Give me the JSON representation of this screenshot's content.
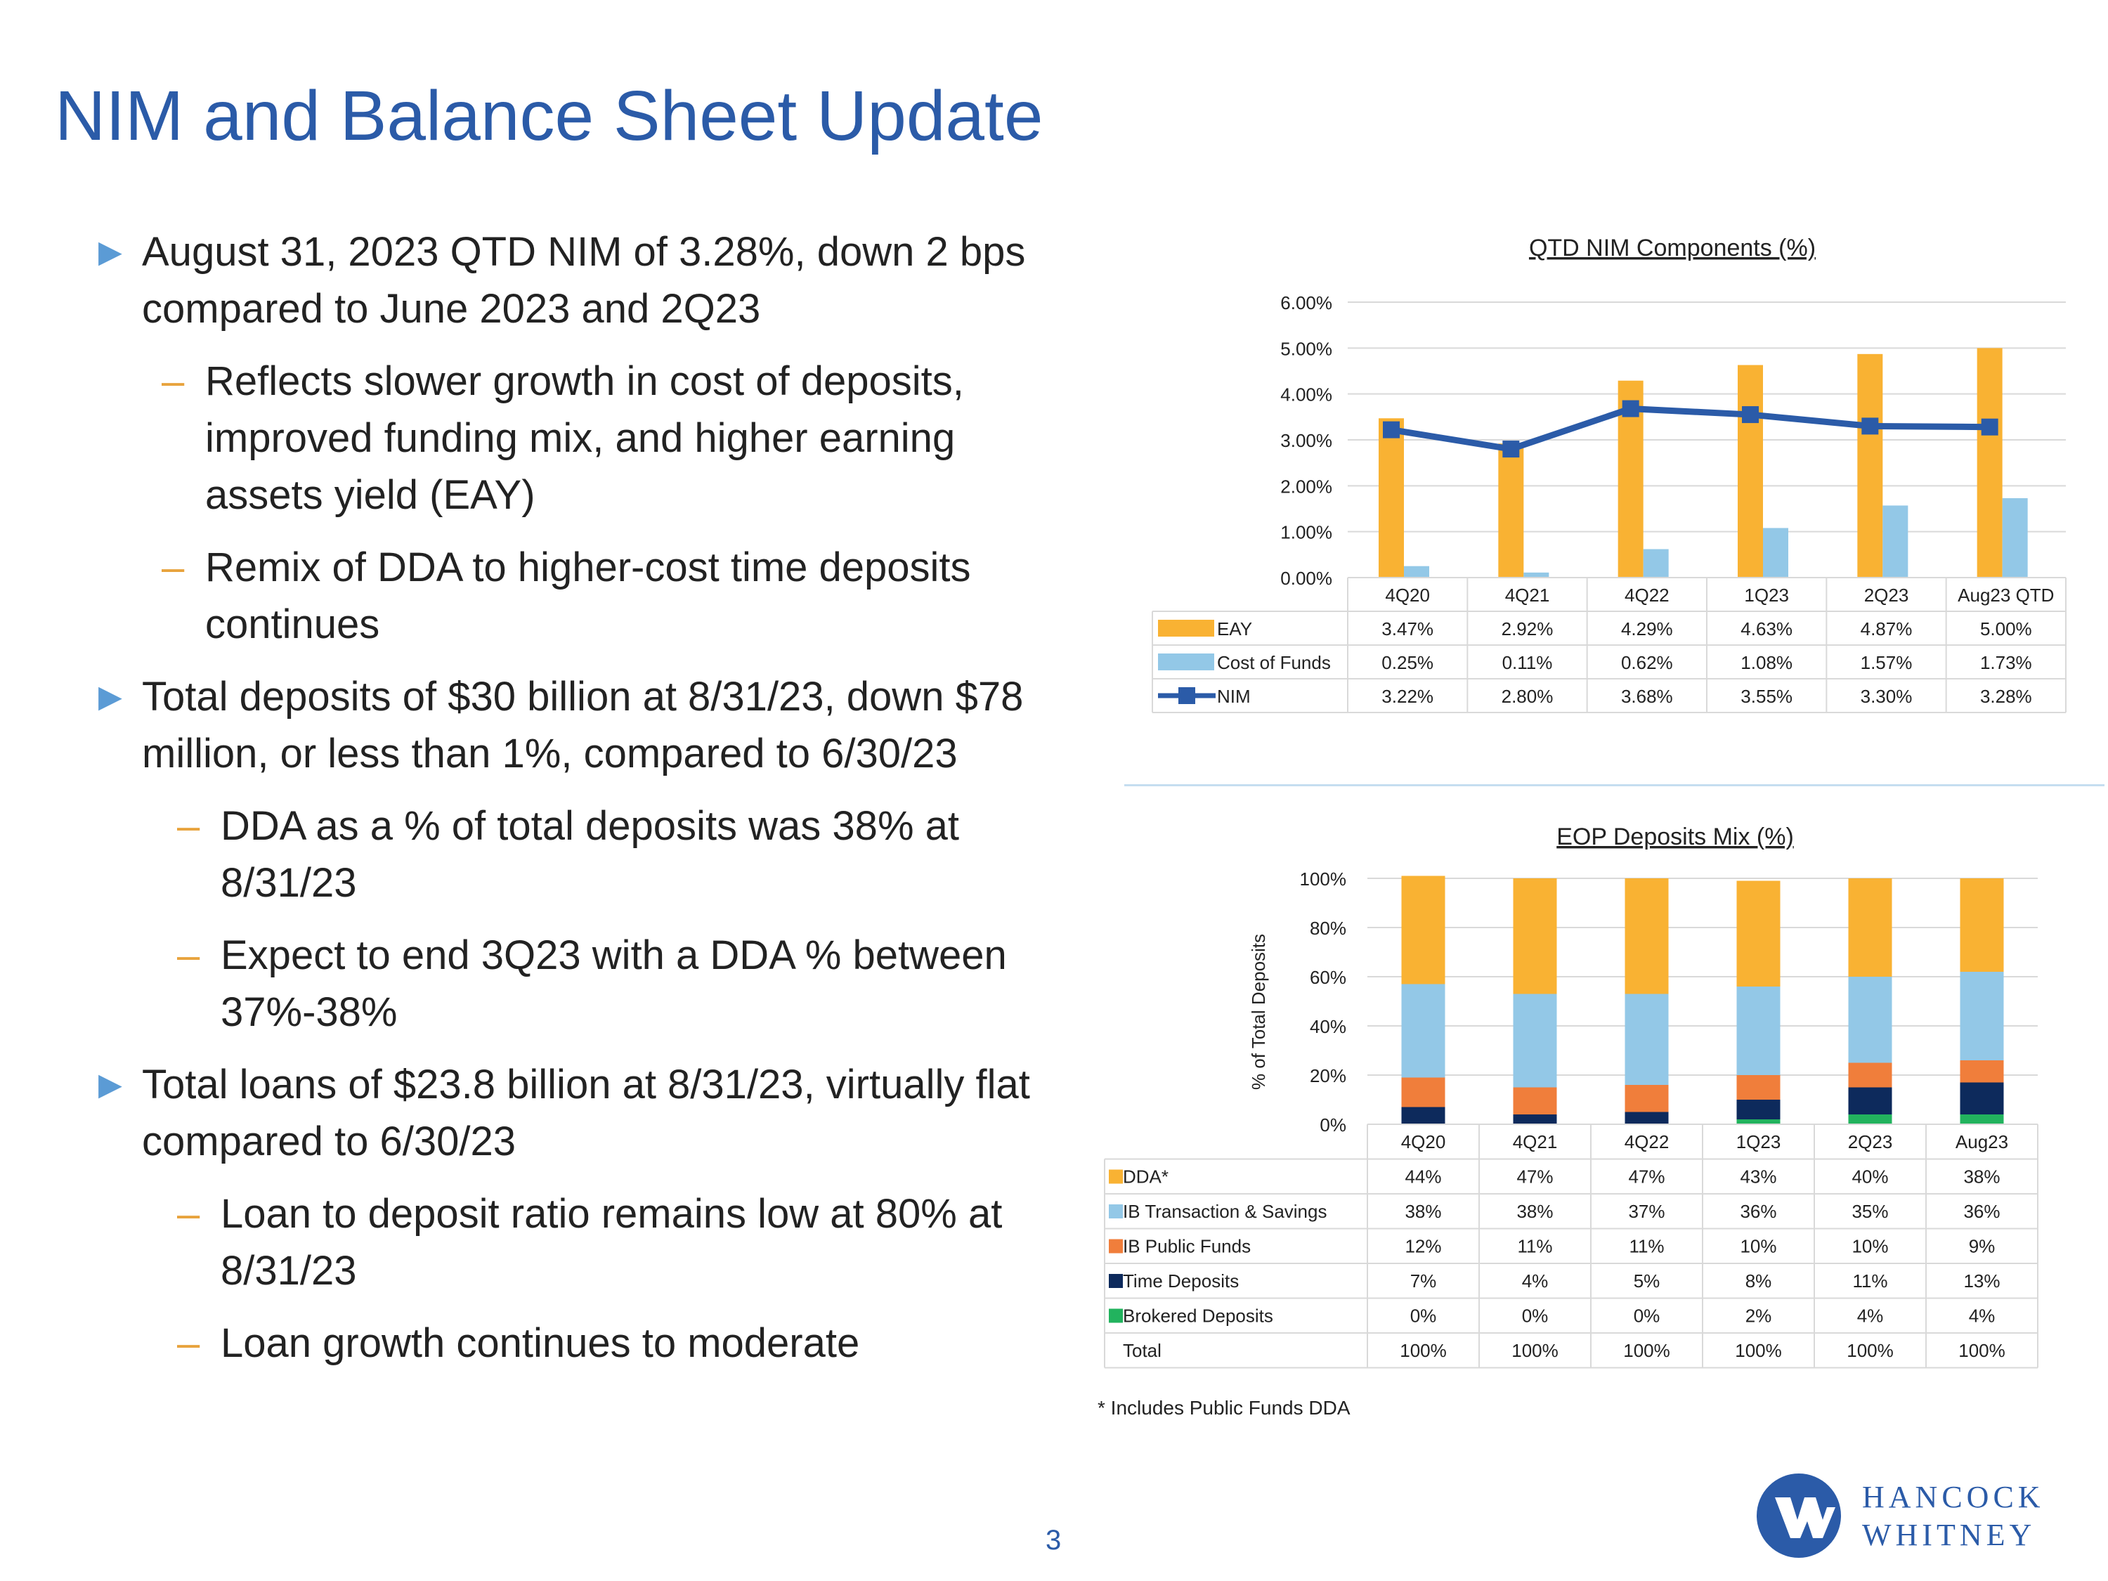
{
  "page": {
    "title": "NIM and Balance Sheet Update",
    "page_number": "3",
    "footnote": "* Includes Public Funds DDA",
    "logo": {
      "line1": "HANCOCK",
      "line2": "WHITNEY",
      "mark": "HW"
    }
  },
  "bullets": [
    {
      "level": 1,
      "text": "August 31, 2023 QTD NIM of 3.28%, down 2 bps compared to June 2023 and 2Q23"
    },
    {
      "level": 2,
      "text": "Reflects slower growth in cost of deposits, improved funding mix, and higher earning assets yield (EAY)"
    },
    {
      "level": 2,
      "text": "Remix of DDA to higher-cost time deposits continues"
    },
    {
      "level": 1,
      "text": "Total deposits of $30 billion at 8/31/23, down $78 million, or less than 1%, compared to 6/30/23"
    },
    {
      "level": 2,
      "text": "DDA as a % of total deposits was 38% at 8/31/23"
    },
    {
      "level": 2,
      "text": "Expect to end 3Q23 with a DDA % between 37%-38%"
    },
    {
      "level": 1,
      "text": "Total loans of $23.8 billion at 8/31/23, virtually flat compared to 6/30/23"
    },
    {
      "level": 2,
      "text": "Loan to deposit ratio remains low at 80% at 8/31/23"
    },
    {
      "level": 2,
      "text": "Loan growth continues to moderate"
    }
  ],
  "colors": {
    "title": "#2b5ba8",
    "eay": "#f9b233",
    "cost": "#93c8e7",
    "nim": "#2b5ba8",
    "dda": "#f9b233",
    "ib_ts": "#93c8e7",
    "ib_pf": "#f07e3b",
    "time": "#0d2a5c",
    "brokered": "#22b35e",
    "grid": "#d9d9d9"
  },
  "chart_data": [
    {
      "type": "bar",
      "title": "QTD NIM Components (%)",
      "categories": [
        "4Q20",
        "4Q21",
        "4Q22",
        "1Q23",
        "2Q23",
        "Aug23 QTD"
      ],
      "ylim": [
        0,
        6
      ],
      "yticks": [
        "0.00%",
        "1.00%",
        "2.00%",
        "3.00%",
        "4.00%",
        "5.00%",
        "6.00%"
      ],
      "series": [
        {
          "name": "EAY",
          "kind": "bar",
          "values": [
            3.47,
            2.92,
            4.29,
            4.63,
            4.87,
            5.0
          ],
          "labels": [
            "3.47%",
            "2.92%",
            "4.29%",
            "4.63%",
            "4.87%",
            "5.00%"
          ]
        },
        {
          "name": "Cost of Funds",
          "kind": "bar",
          "values": [
            0.25,
            0.11,
            0.62,
            1.08,
            1.57,
            1.73
          ],
          "labels": [
            "0.25%",
            "0.11%",
            "0.62%",
            "1.08%",
            "1.57%",
            "1.73%"
          ]
        },
        {
          "name": "NIM",
          "kind": "line",
          "values": [
            3.22,
            2.8,
            3.68,
            3.55,
            3.3,
            3.28
          ],
          "labels": [
            "3.22%",
            "2.80%",
            "3.68%",
            "3.55%",
            "3.30%",
            "3.28%"
          ]
        }
      ]
    },
    {
      "type": "stacked-bar",
      "title": "EOP Deposits Mix (%)",
      "ylabel": "% of Total Deposits",
      "categories": [
        "4Q20",
        "4Q21",
        "4Q22",
        "1Q23",
        "2Q23",
        "Aug23"
      ],
      "ylim": [
        0,
        100
      ],
      "yticks": [
        "0%",
        "20%",
        "40%",
        "60%",
        "80%",
        "100%"
      ],
      "series": [
        {
          "name": "DDA*",
          "values": [
            44,
            47,
            47,
            43,
            40,
            38
          ],
          "labels": [
            "44%",
            "47%",
            "47%",
            "43%",
            "40%",
            "38%"
          ]
        },
        {
          "name": "IB Transaction & Savings",
          "values": [
            38,
            38,
            37,
            36,
            35,
            36
          ],
          "labels": [
            "38%",
            "38%",
            "37%",
            "36%",
            "35%",
            "36%"
          ]
        },
        {
          "name": "IB Public Funds",
          "values": [
            12,
            11,
            11,
            10,
            10,
            9
          ],
          "labels": [
            "12%",
            "11%",
            "11%",
            "10%",
            "10%",
            "9%"
          ]
        },
        {
          "name": "Time Deposits",
          "values": [
            7,
            4,
            5,
            8,
            11,
            13
          ],
          "labels": [
            "7%",
            "4%",
            "5%",
            "8%",
            "11%",
            "13%"
          ]
        },
        {
          "name": "Brokered Deposits",
          "values": [
            0,
            0,
            0,
            2,
            4,
            4
          ],
          "labels": [
            "0%",
            "0%",
            "0%",
            "2%",
            "4%",
            "4%"
          ]
        }
      ],
      "total": {
        "name": "Total",
        "labels": [
          "100%",
          "100%",
          "100%",
          "100%",
          "100%",
          "100%"
        ]
      }
    }
  ]
}
